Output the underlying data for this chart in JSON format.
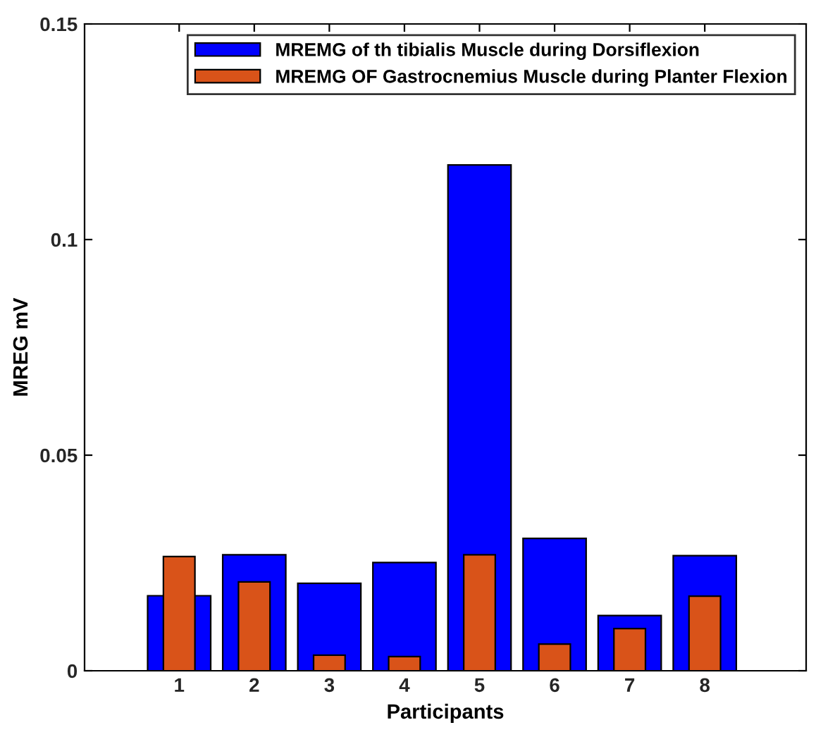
{
  "chart_data": {
    "type": "bar",
    "xlabel": "Participants",
    "ylabel": "MREG mV",
    "categories": [
      "1",
      "2",
      "3",
      "4",
      "5",
      "6",
      "7",
      "8"
    ],
    "series": [
      {
        "name": "MREMG of th tibialis Muscle during Dorsiflexion",
        "color": "#0000ff",
        "values": [
          0.0174,
          0.0269,
          0.0203,
          0.0251,
          0.1173,
          0.0307,
          0.0128,
          0.0267
        ]
      },
      {
        "name": "MREMG OF Gastrocnemius Muscle during Planter Flexion",
        "color": "#d95319",
        "values": [
          0.0265,
          0.0206,
          0.0036,
          0.0033,
          0.0269,
          0.0062,
          0.0098,
          0.0173
        ]
      }
    ],
    "ylim": [
      0,
      0.15
    ],
    "yticks": [
      0,
      0.05,
      0.1,
      0.15
    ],
    "grid": false,
    "legend": "top right"
  }
}
